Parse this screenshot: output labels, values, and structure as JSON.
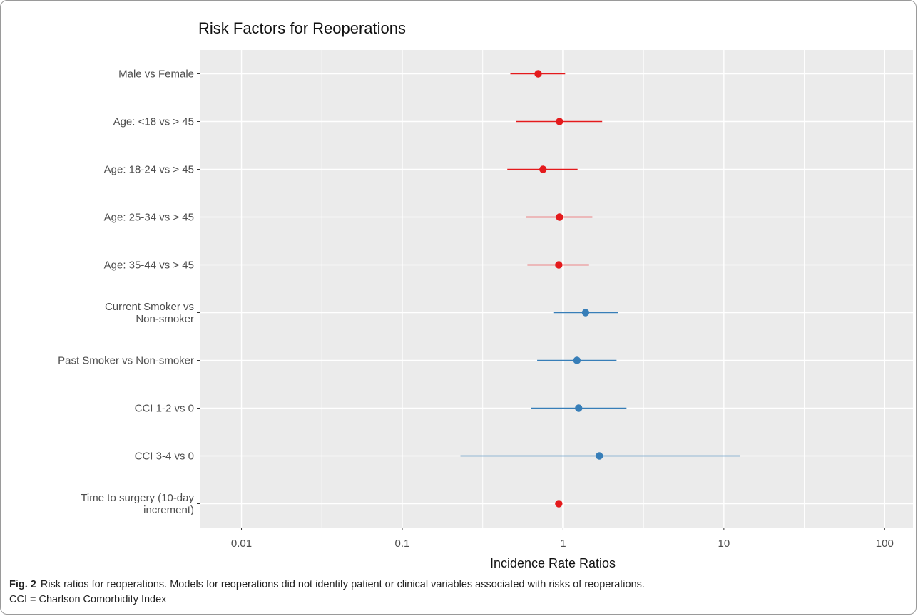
{
  "chart_data": {
    "type": "scatter",
    "title": "Risk Factors for Reoperations",
    "xlabel": "Incidence Rate Ratios",
    "ylabel": "",
    "x_scale": "log10",
    "xlim": [
      0.0055,
      150
    ],
    "x_ticks": [
      {
        "value": 0.01,
        "label": "0.01"
      },
      {
        "value": 0.1,
        "label": "0.1"
      },
      {
        "value": 1,
        "label": "1"
      },
      {
        "value": 10,
        "label": "10"
      },
      {
        "value": 100,
        "label": "100"
      }
    ],
    "reference_line": 1,
    "grid": true,
    "legend": "none",
    "colors": {
      "increase": "#377eb8",
      "decrease": "#e41a1c",
      "panel": "#ebebeb",
      "grid": "#ffffff"
    },
    "series": [
      {
        "label": [
          "Male vs Female"
        ],
        "estimate": 0.7,
        "ci_low": 0.47,
        "ci_high": 1.03,
        "direction": "decrease"
      },
      {
        "label": [
          "Age: <18 vs > 45"
        ],
        "estimate": 0.95,
        "ci_low": 0.51,
        "ci_high": 1.75,
        "direction": "decrease"
      },
      {
        "label": [
          "Age: 18-24 vs > 45"
        ],
        "estimate": 0.75,
        "ci_low": 0.45,
        "ci_high": 1.23,
        "direction": "decrease"
      },
      {
        "label": [
          "Age: 25-34 vs > 45"
        ],
        "estimate": 0.95,
        "ci_low": 0.59,
        "ci_high": 1.52,
        "direction": "decrease"
      },
      {
        "label": [
          "Age: 35-44 vs > 45"
        ],
        "estimate": 0.94,
        "ci_low": 0.6,
        "ci_high": 1.45,
        "direction": "decrease"
      },
      {
        "label": [
          "Current Smoker vs",
          "Non-smoker"
        ],
        "estimate": 1.38,
        "ci_low": 0.87,
        "ci_high": 2.2,
        "direction": "increase"
      },
      {
        "label": [
          "Past Smoker vs Non-smoker"
        ],
        "estimate": 1.22,
        "ci_low": 0.69,
        "ci_high": 2.15,
        "direction": "increase"
      },
      {
        "label": [
          "CCI 1-2 vs 0"
        ],
        "estimate": 1.25,
        "ci_low": 0.63,
        "ci_high": 2.48,
        "direction": "increase"
      },
      {
        "label": [
          "CCI 3-4 vs 0"
        ],
        "estimate": 1.68,
        "ci_low": 0.23,
        "ci_high": 12.6,
        "direction": "increase"
      },
      {
        "label": [
          "Time to surgery (10-day",
          "increment)"
        ],
        "estimate": 0.94,
        "ci_low": 0.92,
        "ci_high": 0.96,
        "direction": "decrease"
      }
    ]
  },
  "caption": {
    "label": "Fig. 2",
    "text": "Risk ratios for reoperations. Models for reoperations did not identify patient or clinical variables associated with risks of reoperations.",
    "text2": "CCI = Charlson Comorbidity Index"
  }
}
